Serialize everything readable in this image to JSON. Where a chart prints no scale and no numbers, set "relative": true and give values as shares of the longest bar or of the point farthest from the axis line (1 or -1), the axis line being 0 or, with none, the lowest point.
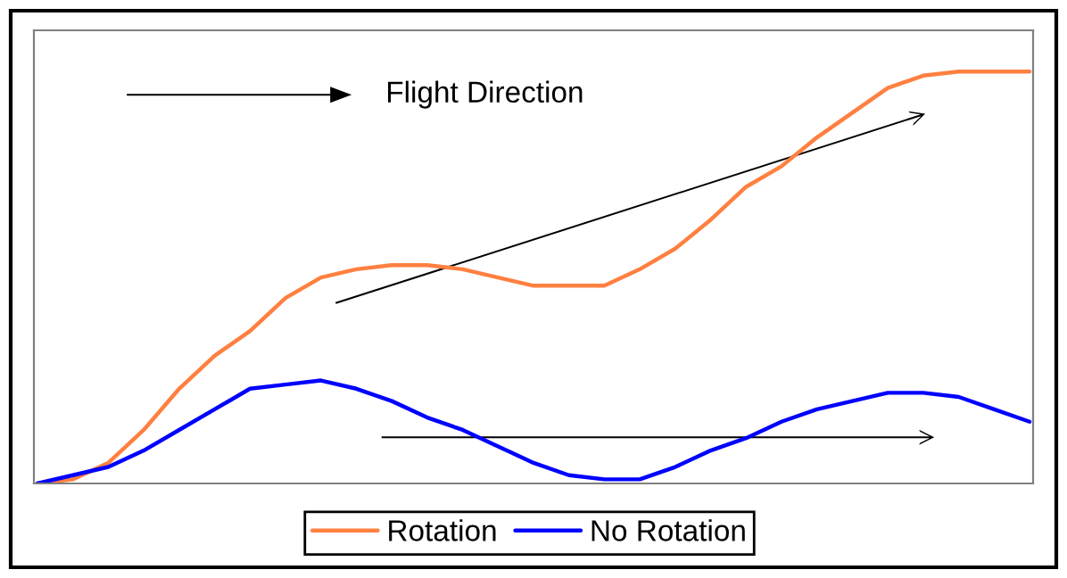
{
  "chart_data": {
    "type": "line",
    "relative": true,
    "legend": "bottom",
    "grid": false,
    "marker": "none",
    "line_style": "solid",
    "annotations": [
      "Flight Direction"
    ],
    "categories": [
      null,
      null,
      null,
      null,
      null,
      null,
      null,
      null,
      null,
      null,
      null,
      null,
      null,
      null,
      null,
      null,
      null,
      null,
      null,
      null,
      null,
      null,
      null,
      null,
      null,
      null,
      null,
      null,
      null
    ],
    "series": [
      {
        "name": "Rotation",
        "color": "#ff8040",
        "values": [
          0,
          0.01,
          0.05,
          0.13,
          0.23,
          0.31,
          0.37,
          0.45,
          0.5,
          0.52,
          0.53,
          0.53,
          0.52,
          0.5,
          0.48,
          0.48,
          0.48,
          0.52,
          0.57,
          0.64,
          0.72,
          0.77,
          0.84,
          0.9,
          0.96,
          0.99,
          1,
          1,
          1
        ]
      },
      {
        "name": "No Rotation",
        "color": "#0000ff",
        "values": [
          0,
          0.02,
          0.04,
          0.08,
          0.13,
          0.18,
          0.23,
          0.24,
          0.25,
          0.23,
          0.2,
          0.16,
          0.13,
          0.09,
          0.05,
          0.02,
          0.01,
          0.01,
          0.04,
          0.08,
          0.11,
          0.15,
          0.18,
          0.2,
          0.22,
          0.22,
          0.21,
          0.18,
          0.15
        ]
      }
    ]
  }
}
